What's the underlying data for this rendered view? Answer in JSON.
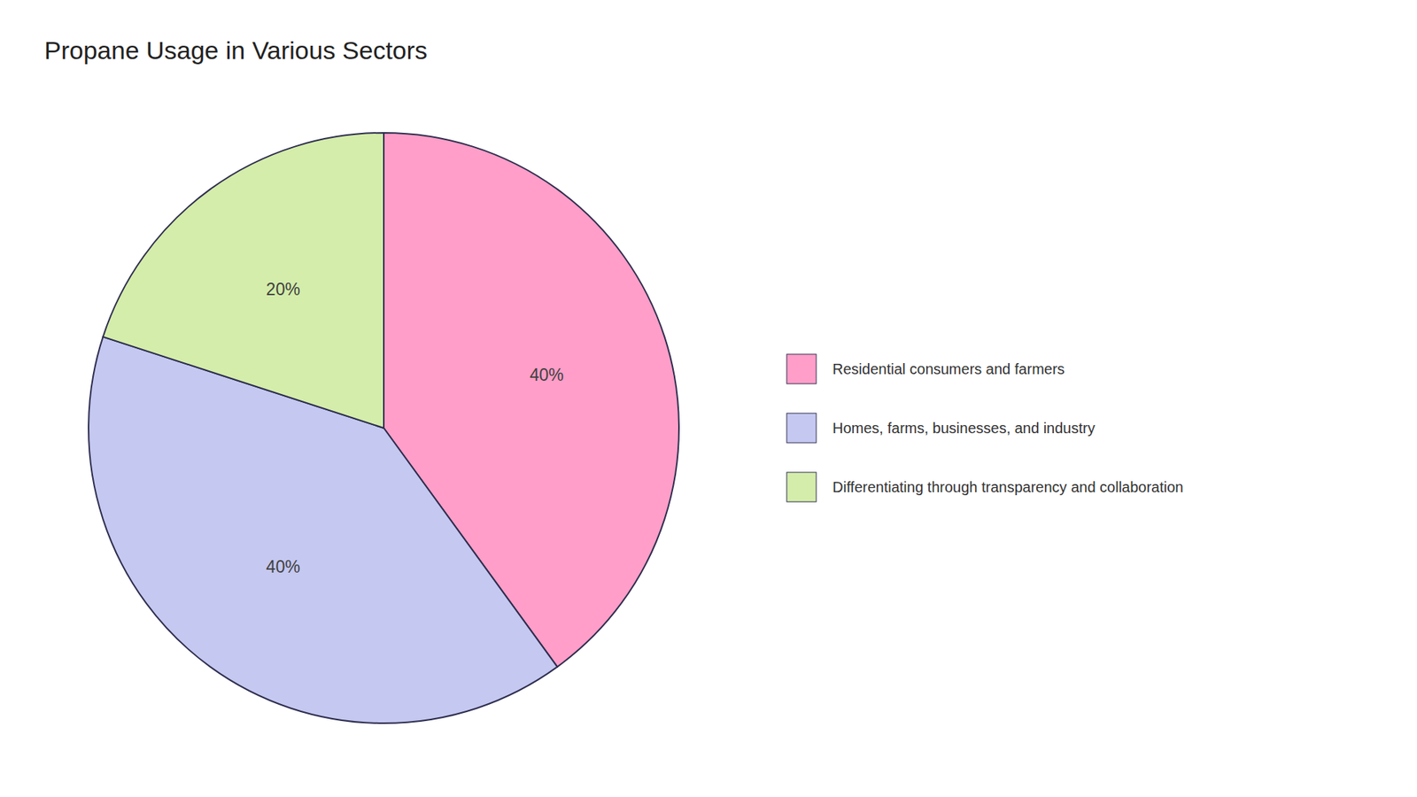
{
  "chart_data": {
    "type": "pie",
    "title": "Propane Usage in Various Sectors",
    "categories": [
      "Residential consumers and farmers",
      "Homes, farms, businesses, and industry",
      "Differentiating through transparency and collaboration"
    ],
    "values": [
      40,
      40,
      20
    ],
    "value_labels": [
      "40%",
      "40%",
      "20%"
    ],
    "colors": [
      "#FF9EC8",
      "#C5C8F0",
      "#D4EDAA"
    ],
    "data_labels": true,
    "legend": "right"
  }
}
